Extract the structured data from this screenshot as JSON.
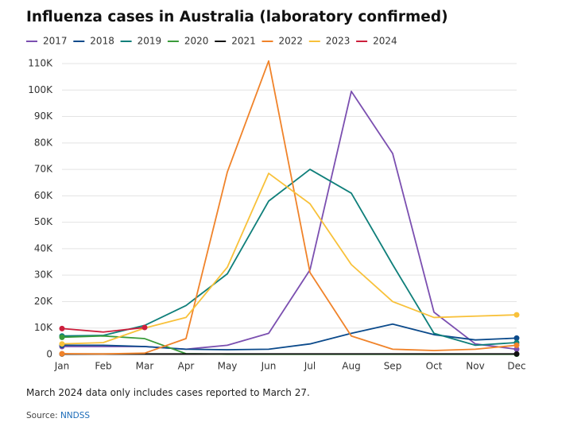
{
  "chart_data": {
    "type": "line",
    "title": "Influenza cases in Australia (laboratory confirmed)",
    "categories": [
      "Jan",
      "Feb",
      "Mar",
      "Apr",
      "May",
      "Jun",
      "Jul",
      "Aug",
      "Sep",
      "Oct",
      "Nov",
      "Dec"
    ],
    "series": [
      {
        "name": "2017",
        "color": "#7b4fb0",
        "values": [
          3,
          3,
          3,
          2,
          3.5,
          8,
          32,
          99.5,
          76,
          16,
          4,
          2
        ]
      },
      {
        "name": "2018",
        "color": "#0b4a8b",
        "values": [
          3.5,
          3.5,
          3,
          2,
          1.8,
          2,
          4,
          8,
          11.5,
          7.5,
          5.5,
          6.2
        ]
      },
      {
        "name": "2019",
        "color": "#0f7f7a",
        "values": [
          7,
          7.2,
          11,
          18.5,
          30.5,
          58,
          70,
          61,
          34,
          8,
          3.5,
          4.5
        ]
      },
      {
        "name": "2020",
        "color": "#3a9b3a",
        "values": [
          6.5,
          7,
          6,
          0.3,
          0.1,
          0.1,
          0.1,
          0.1,
          0.1,
          0.1,
          0.1,
          0.1
        ]
      },
      {
        "name": "2021",
        "color": "#111111",
        "values": [
          0.2,
          0.2,
          0.2,
          0.2,
          0.2,
          0.2,
          0.2,
          0.2,
          0.2,
          0.2,
          0.2,
          0.2
        ]
      },
      {
        "name": "2022",
        "color": "#f0832a",
        "values": [
          0.3,
          0.2,
          0.5,
          6,
          69,
          111,
          31,
          7,
          2,
          1.5,
          2,
          3.5
        ]
      },
      {
        "name": "2023",
        "color": "#f8c13a",
        "values": [
          4,
          4.5,
          10,
          14,
          33,
          68.5,
          57,
          34,
          20,
          14,
          14.5,
          15
        ]
      },
      {
        "name": "2024",
        "color": "#cc1f3c",
        "values": [
          9.8,
          8.5,
          10.2,
          null,
          null,
          null,
          null,
          null,
          null,
          null,
          null,
          null
        ]
      }
    ],
    "ylim": [
      0,
      110
    ],
    "yticks": [
      0,
      {
        "value": 10,
        "label": "10K"
      },
      {
        "value": 20,
        "label": "20K"
      },
      {
        "value": 30,
        "label": "30K"
      },
      {
        "value": 40,
        "label": "40K"
      },
      {
        "value": 50,
        "label": "50K"
      },
      {
        "value": 60,
        "label": "60K"
      },
      {
        "value": 70,
        "label": "70K"
      },
      {
        "value": 80,
        "label": "80K"
      },
      {
        "value": 90,
        "label": "90K"
      },
      {
        "value": 100,
        "label": "100K"
      },
      {
        "value": 110,
        "label": "110K"
      }
    ],
    "grid": true,
    "note": "March 2024 data only includes cases reported to March 27.",
    "source_label": "Source:",
    "source_link": "NNDSS"
  }
}
